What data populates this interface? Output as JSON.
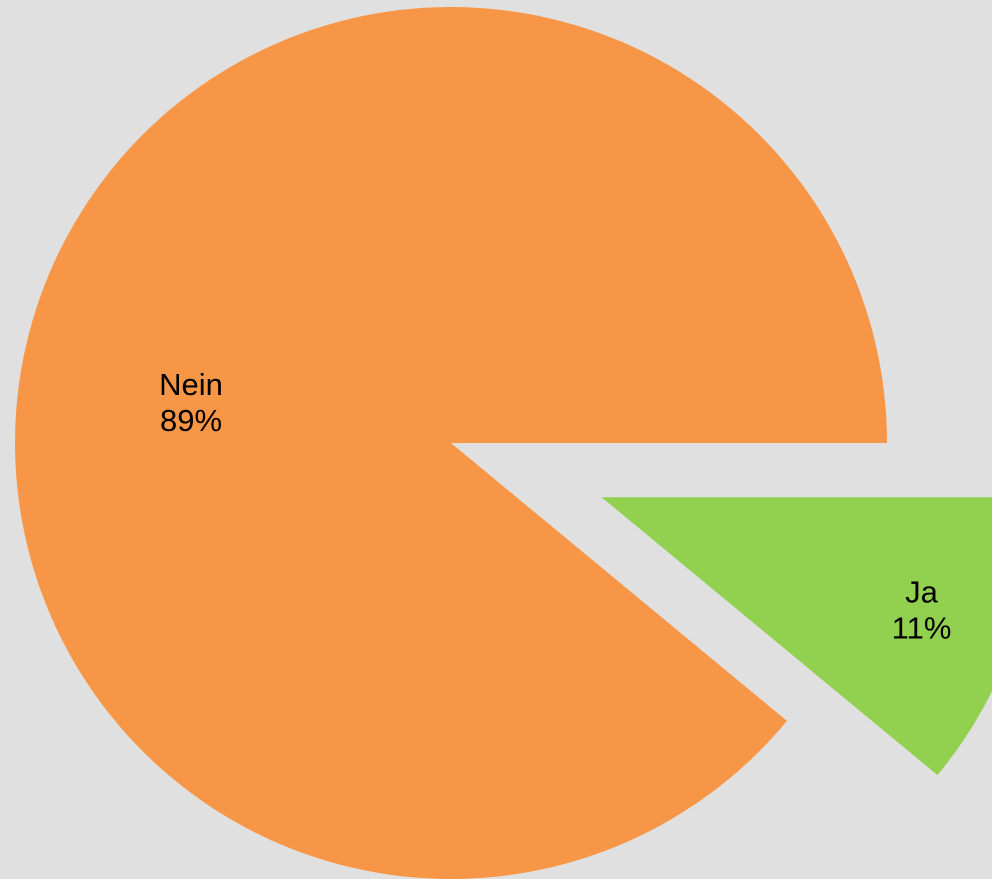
{
  "chart_data": {
    "type": "pie",
    "title": "",
    "slices": [
      {
        "label": "Nein",
        "value": 89,
        "percent_label": "89%",
        "color": "#F79646",
        "exploded": false
      },
      {
        "label": "Ja",
        "value": 11,
        "percent_label": "11%",
        "color": "#92D050",
        "exploded": true
      }
    ],
    "legend": "none",
    "background": "#E0E0E0"
  }
}
